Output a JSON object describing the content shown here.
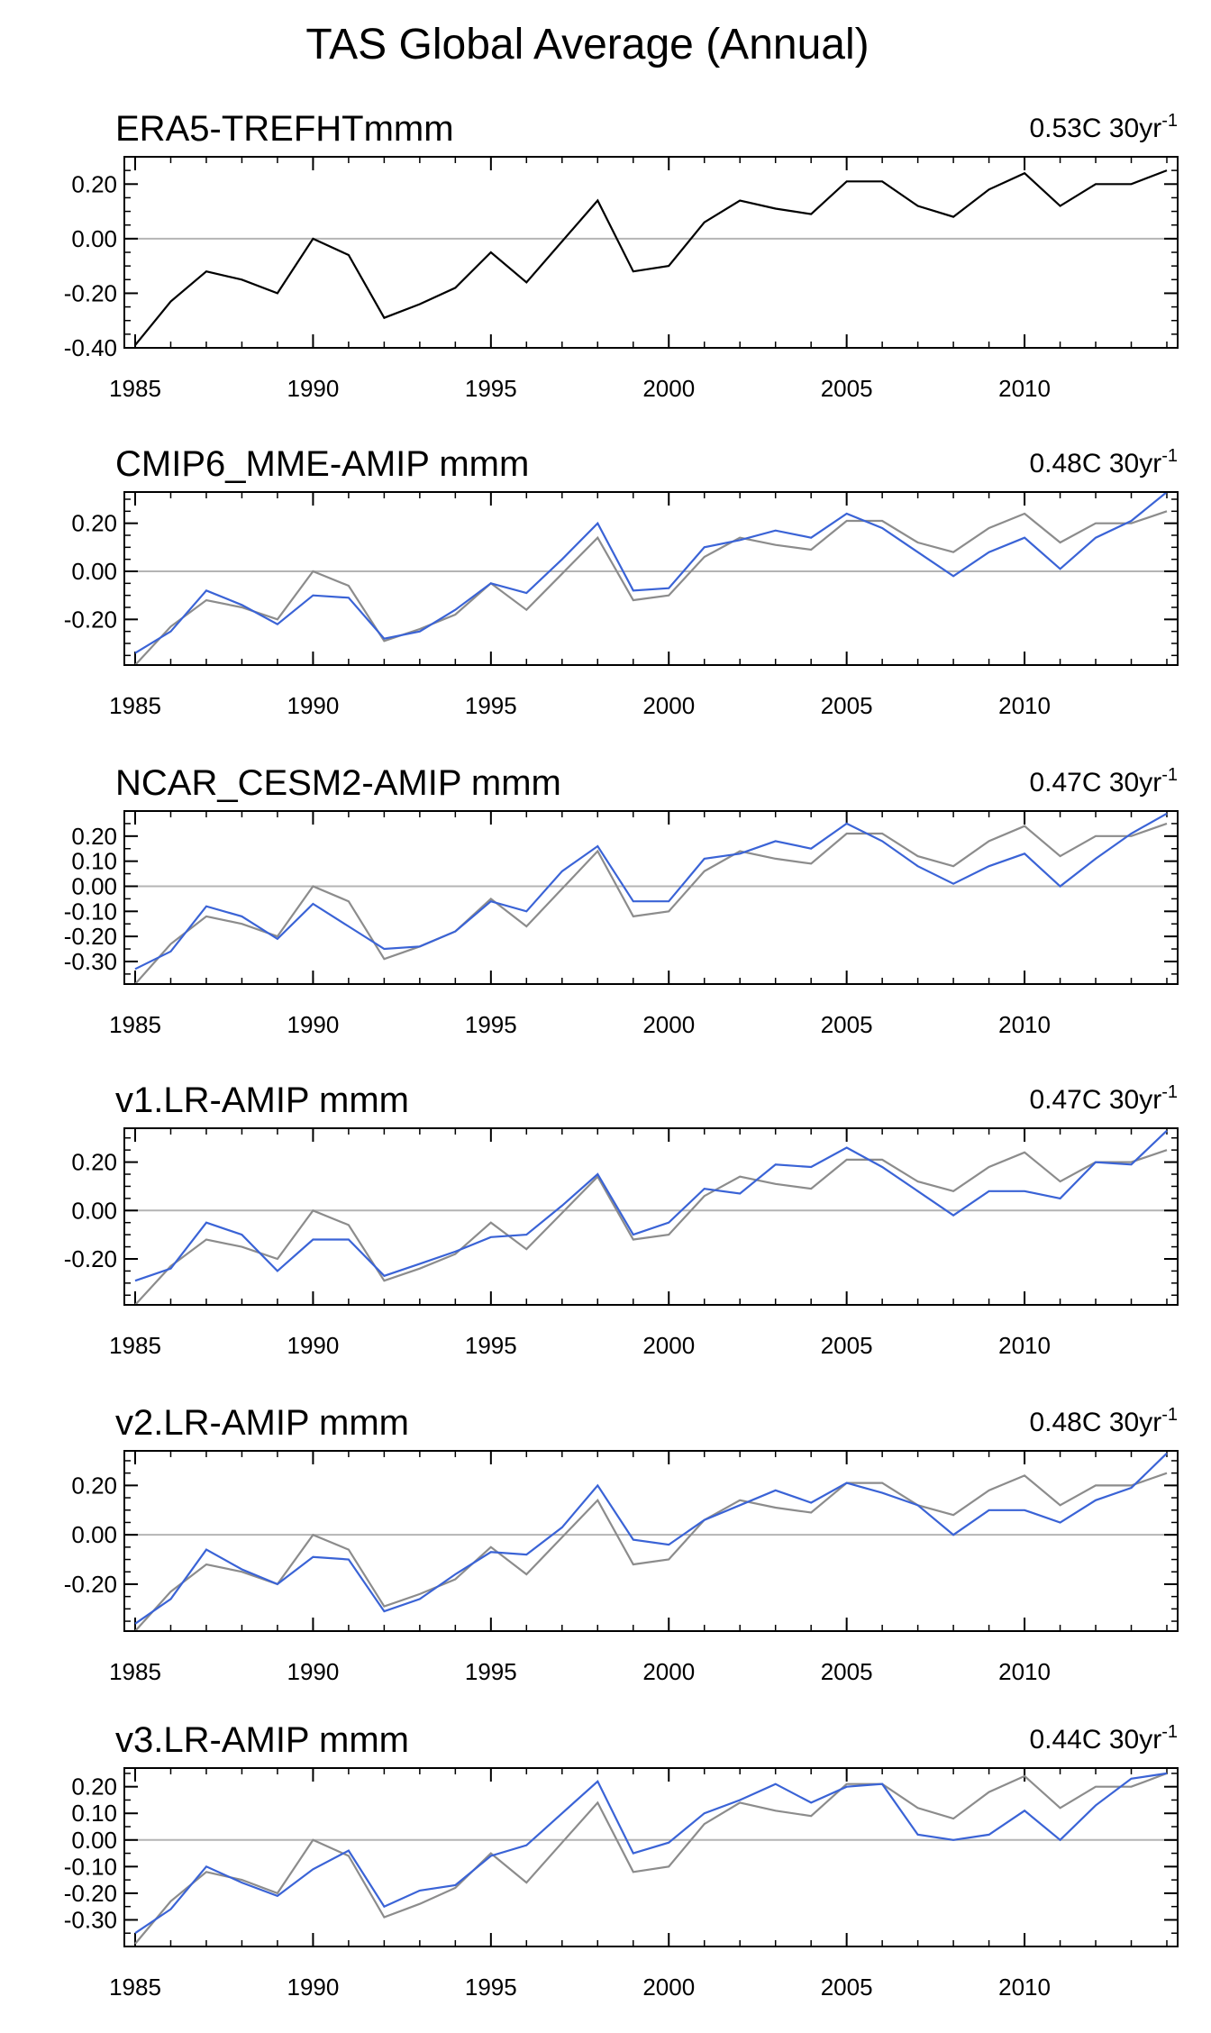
{
  "figure_title": "TAS Global Average (Annual)",
  "colors": {
    "reference": "#000000",
    "reference_overlay": "#8c8c8c",
    "model": "#3a63d6",
    "zero_line": "#b4b4b4"
  },
  "chart_data": [
    {
      "type": "line",
      "title": "ERA5-TREFHTmmm",
      "trend_label": "0.53C 30yr",
      "trend_sup": "-1",
      "x": [
        1985,
        1986,
        1987,
        1988,
        1989,
        1990,
        1991,
        1992,
        1993,
        1994,
        1995,
        1996,
        1997,
        1998,
        1999,
        2000,
        2001,
        2002,
        2003,
        2004,
        2005,
        2006,
        2007,
        2008,
        2009,
        2010,
        2011,
        2012,
        2013,
        2014
      ],
      "xticks": [
        "1985",
        "1990",
        "1995",
        "2000",
        "2005",
        "2010"
      ],
      "ylim": [
        -0.4,
        0.3
      ],
      "yticks": [
        "0.20",
        "0.00",
        "-0.20",
        "-0.40"
      ],
      "ytick_values": [
        0.2,
        0.0,
        -0.2,
        -0.4
      ],
      "series": [
        {
          "name": "ERA5",
          "role": "reference_main",
          "values": [
            -0.39,
            -0.23,
            -0.12,
            -0.15,
            -0.2,
            0.0,
            -0.06,
            -0.29,
            -0.24,
            -0.18,
            -0.05,
            -0.16,
            -0.01,
            0.14,
            -0.12,
            -0.1,
            0.06,
            0.14,
            0.11,
            0.09,
            0.21,
            0.21,
            0.12,
            0.08,
            0.18,
            0.24,
            0.12,
            0.2,
            0.2,
            0.25
          ]
        }
      ]
    },
    {
      "type": "line",
      "title": "CMIP6_MME-AMIP  mmm",
      "trend_label": "0.48C 30yr",
      "trend_sup": "-1",
      "x": [
        1985,
        1986,
        1987,
        1988,
        1989,
        1990,
        1991,
        1992,
        1993,
        1994,
        1995,
        1996,
        1997,
        1998,
        1999,
        2000,
        2001,
        2002,
        2003,
        2004,
        2005,
        2006,
        2007,
        2008,
        2009,
        2010,
        2011,
        2012,
        2013,
        2014
      ],
      "xticks": [
        "1985",
        "1990",
        "1995",
        "2000",
        "2005",
        "2010"
      ],
      "ylim": [
        -0.39,
        0.33
      ],
      "yticks": [
        "0.20",
        "0.00",
        "-0.20"
      ],
      "ytick_values": [
        0.2,
        0.0,
        -0.2
      ],
      "series": [
        {
          "name": "ERA5",
          "role": "reference",
          "values": [
            -0.39,
            -0.23,
            -0.12,
            -0.15,
            -0.2,
            0.0,
            -0.06,
            -0.29,
            -0.24,
            -0.18,
            -0.05,
            -0.16,
            -0.01,
            0.14,
            -0.12,
            -0.1,
            0.06,
            0.14,
            0.11,
            0.09,
            0.21,
            0.21,
            0.12,
            0.08,
            0.18,
            0.24,
            0.12,
            0.2,
            0.2,
            0.25
          ]
        },
        {
          "name": "CMIP6_MME-AMIP",
          "role": "model",
          "values": [
            -0.34,
            -0.25,
            -0.08,
            -0.14,
            -0.22,
            -0.1,
            -0.11,
            -0.28,
            -0.25,
            -0.16,
            -0.05,
            -0.09,
            0.05,
            0.2,
            -0.08,
            -0.07,
            0.1,
            0.13,
            0.17,
            0.14,
            0.24,
            0.18,
            0.08,
            -0.02,
            0.08,
            0.14,
            0.01,
            0.14,
            0.21,
            0.33
          ]
        }
      ]
    },
    {
      "type": "line",
      "title": "NCAR_CESM2-AMIP  mmm",
      "trend_label": "0.47C 30yr",
      "trend_sup": "-1",
      "x": [
        1985,
        1986,
        1987,
        1988,
        1989,
        1990,
        1991,
        1992,
        1993,
        1994,
        1995,
        1996,
        1997,
        1998,
        1999,
        2000,
        2001,
        2002,
        2003,
        2004,
        2005,
        2006,
        2007,
        2008,
        2009,
        2010,
        2011,
        2012,
        2013,
        2014
      ],
      "xticks": [
        "1985",
        "1990",
        "1995",
        "2000",
        "2005",
        "2010"
      ],
      "ylim": [
        -0.39,
        0.3
      ],
      "yticks": [
        "0.20",
        "0.10",
        "0.00",
        "-0.10",
        "-0.20",
        "-0.30"
      ],
      "ytick_values": [
        0.2,
        0.1,
        0.0,
        -0.1,
        -0.2,
        -0.3
      ],
      "series": [
        {
          "name": "ERA5",
          "role": "reference",
          "values": [
            -0.39,
            -0.23,
            -0.12,
            -0.15,
            -0.2,
            0.0,
            -0.06,
            -0.29,
            -0.24,
            -0.18,
            -0.05,
            -0.16,
            -0.01,
            0.14,
            -0.12,
            -0.1,
            0.06,
            0.14,
            0.11,
            0.09,
            0.21,
            0.21,
            0.12,
            0.08,
            0.18,
            0.24,
            0.12,
            0.2,
            0.2,
            0.25
          ]
        },
        {
          "name": "NCAR_CESM2-AMIP",
          "role": "model",
          "values": [
            -0.33,
            -0.26,
            -0.08,
            -0.12,
            -0.21,
            -0.07,
            -0.16,
            -0.25,
            -0.24,
            -0.18,
            -0.06,
            -0.1,
            0.06,
            0.16,
            -0.06,
            -0.06,
            0.11,
            0.13,
            0.18,
            0.15,
            0.25,
            0.18,
            0.08,
            0.01,
            0.08,
            0.13,
            0.0,
            0.11,
            0.21,
            0.29
          ]
        }
      ]
    },
    {
      "type": "line",
      "title": "v1.LR-AMIP  mmm",
      "trend_label": "0.47C 30yr",
      "trend_sup": "-1",
      "x": [
        1985,
        1986,
        1987,
        1988,
        1989,
        1990,
        1991,
        1992,
        1993,
        1994,
        1995,
        1996,
        1997,
        1998,
        1999,
        2000,
        2001,
        2002,
        2003,
        2004,
        2005,
        2006,
        2007,
        2008,
        2009,
        2010,
        2011,
        2012,
        2013,
        2014
      ],
      "xticks": [
        "1985",
        "1990",
        "1995",
        "2000",
        "2005",
        "2010"
      ],
      "ylim": [
        -0.39,
        0.34
      ],
      "yticks": [
        "0.20",
        "0.00",
        "-0.20"
      ],
      "ytick_values": [
        0.2,
        0.0,
        -0.2
      ],
      "series": [
        {
          "name": "ERA5",
          "role": "reference",
          "values": [
            -0.39,
            -0.23,
            -0.12,
            -0.15,
            -0.2,
            0.0,
            -0.06,
            -0.29,
            -0.24,
            -0.18,
            -0.05,
            -0.16,
            -0.01,
            0.14,
            -0.12,
            -0.1,
            0.06,
            0.14,
            0.11,
            0.09,
            0.21,
            0.21,
            0.12,
            0.08,
            0.18,
            0.24,
            0.12,
            0.2,
            0.2,
            0.25
          ]
        },
        {
          "name": "v1.LR-AMIP",
          "role": "model",
          "values": [
            -0.29,
            -0.24,
            -0.05,
            -0.1,
            -0.25,
            -0.12,
            -0.12,
            -0.27,
            -0.22,
            -0.17,
            -0.11,
            -0.1,
            0.02,
            0.15,
            -0.1,
            -0.05,
            0.09,
            0.07,
            0.19,
            0.18,
            0.26,
            0.18,
            0.08,
            -0.02,
            0.08,
            0.08,
            0.05,
            0.2,
            0.19,
            0.33
          ]
        }
      ]
    },
    {
      "type": "line",
      "title": "v2.LR-AMIP  mmm",
      "trend_label": "0.48C 30yr",
      "trend_sup": "-1",
      "x": [
        1985,
        1986,
        1987,
        1988,
        1989,
        1990,
        1991,
        1992,
        1993,
        1994,
        1995,
        1996,
        1997,
        1998,
        1999,
        2000,
        2001,
        2002,
        2003,
        2004,
        2005,
        2006,
        2007,
        2008,
        2009,
        2010,
        2011,
        2012,
        2013,
        2014
      ],
      "xticks": [
        "1985",
        "1990",
        "1995",
        "2000",
        "2005",
        "2010"
      ],
      "ylim": [
        -0.39,
        0.34
      ],
      "yticks": [
        "0.20",
        "0.00",
        "-0.20"
      ],
      "ytick_values": [
        0.2,
        0.0,
        -0.2
      ],
      "series": [
        {
          "name": "ERA5",
          "role": "reference",
          "values": [
            -0.39,
            -0.23,
            -0.12,
            -0.15,
            -0.2,
            0.0,
            -0.06,
            -0.29,
            -0.24,
            -0.18,
            -0.05,
            -0.16,
            -0.01,
            0.14,
            -0.12,
            -0.1,
            0.06,
            0.14,
            0.11,
            0.09,
            0.21,
            0.21,
            0.12,
            0.08,
            0.18,
            0.24,
            0.12,
            0.2,
            0.2,
            0.25
          ]
        },
        {
          "name": "v2.LR-AMIP",
          "role": "model",
          "values": [
            -0.36,
            -0.26,
            -0.06,
            -0.14,
            -0.2,
            -0.09,
            -0.1,
            -0.31,
            -0.26,
            -0.16,
            -0.07,
            -0.08,
            0.03,
            0.2,
            -0.02,
            -0.04,
            0.06,
            0.12,
            0.18,
            0.13,
            0.21,
            0.17,
            0.12,
            0.0,
            0.1,
            0.1,
            0.05,
            0.14,
            0.19,
            0.33
          ]
        }
      ]
    },
    {
      "type": "line",
      "title": "v3.LR-AMIP  mmm",
      "trend_label": "0.44C 30yr",
      "trend_sup": "-1",
      "x": [
        1985,
        1986,
        1987,
        1988,
        1989,
        1990,
        1991,
        1992,
        1993,
        1994,
        1995,
        1996,
        1997,
        1998,
        1999,
        2000,
        2001,
        2002,
        2003,
        2004,
        2005,
        2006,
        2007,
        2008,
        2009,
        2010,
        2011,
        2012,
        2013,
        2014
      ],
      "xticks": [
        "1985",
        "1990",
        "1995",
        "2000",
        "2005",
        "2010"
      ],
      "ylim": [
        -0.4,
        0.27
      ],
      "yticks": [
        "0.20",
        "0.10",
        "0.00",
        "-0.10",
        "-0.20",
        "-0.30"
      ],
      "ytick_values": [
        0.2,
        0.1,
        0.0,
        -0.1,
        -0.2,
        -0.3
      ],
      "series": [
        {
          "name": "ERA5",
          "role": "reference",
          "values": [
            -0.39,
            -0.23,
            -0.12,
            -0.15,
            -0.2,
            0.0,
            -0.06,
            -0.29,
            -0.24,
            -0.18,
            -0.05,
            -0.16,
            -0.01,
            0.14,
            -0.12,
            -0.1,
            0.06,
            0.14,
            0.11,
            0.09,
            0.21,
            0.21,
            0.12,
            0.08,
            0.18,
            0.24,
            0.12,
            0.2,
            0.2,
            0.25
          ]
        },
        {
          "name": "v3.LR-AMIP",
          "role": "model",
          "values": [
            -0.35,
            -0.26,
            -0.1,
            -0.16,
            -0.21,
            -0.11,
            -0.04,
            -0.25,
            -0.19,
            -0.17,
            -0.06,
            -0.02,
            0.1,
            0.22,
            -0.05,
            -0.01,
            0.1,
            0.15,
            0.21,
            0.14,
            0.2,
            0.21,
            0.02,
            0.0,
            0.02,
            0.11,
            0.0,
            0.13,
            0.23,
            0.25
          ]
        }
      ]
    }
  ]
}
